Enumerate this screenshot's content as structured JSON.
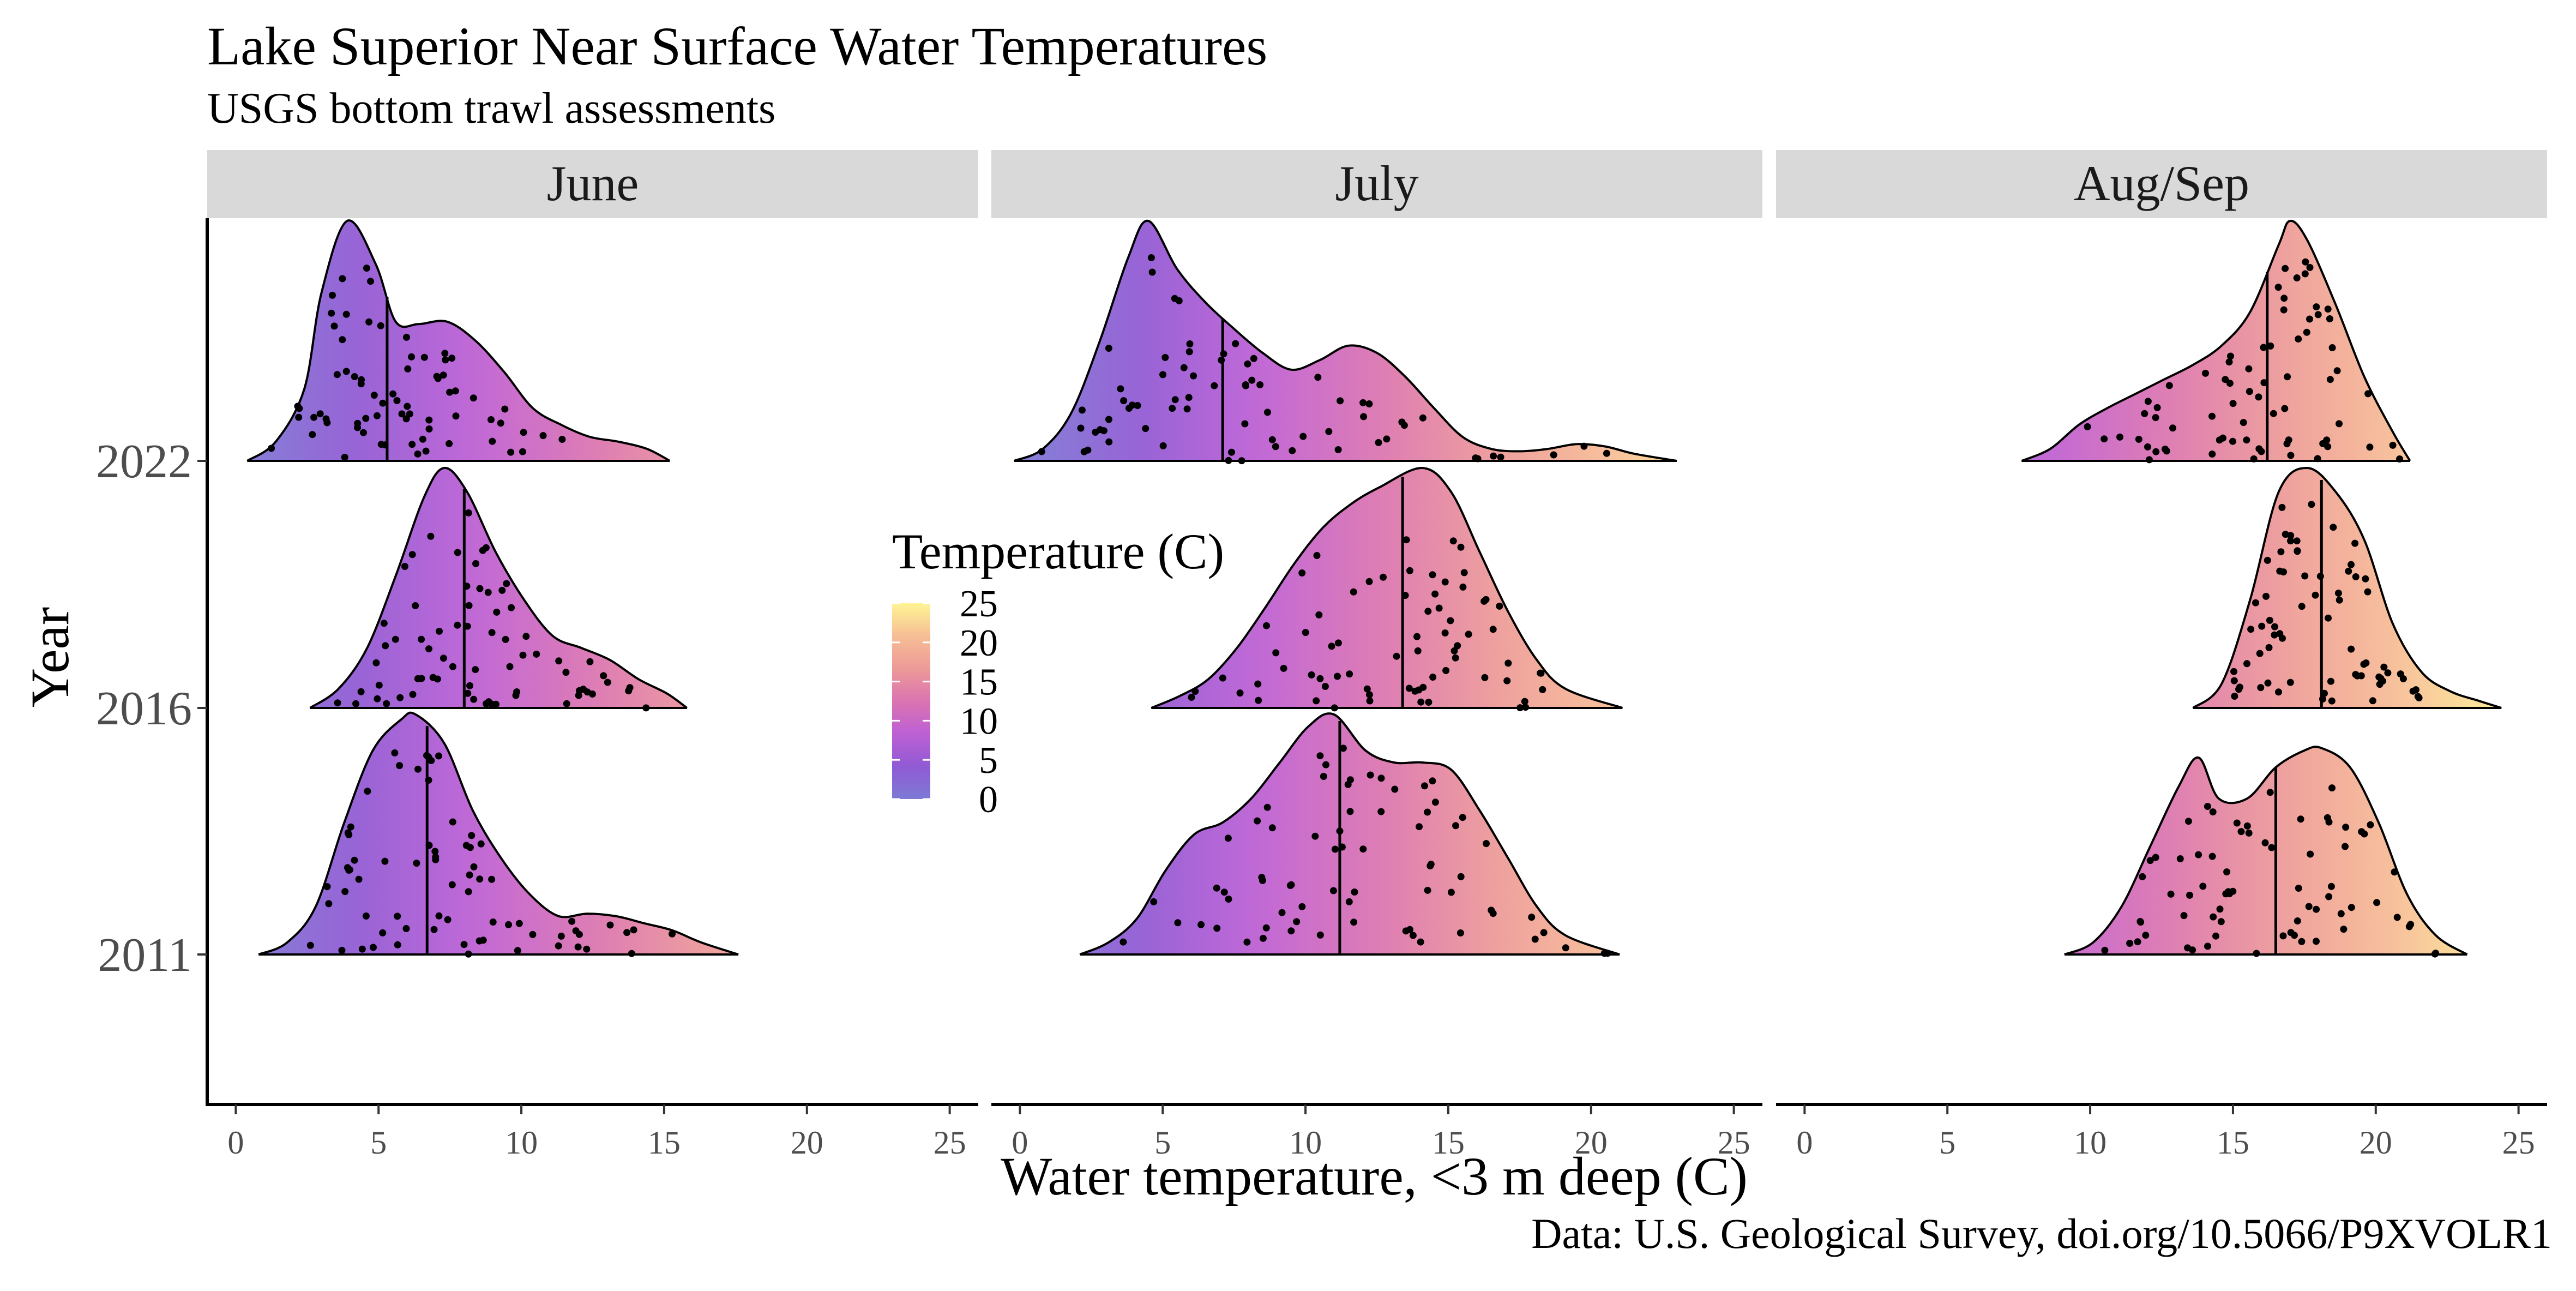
{
  "chart_data": {
    "type": "ridgeline",
    "title": "Lake Superior Near Surface Water Temperatures",
    "subtitle": "USGS bottom trawl assessments",
    "caption": "Data: U.S. Geological Survey, doi.org/10.5066/P9XVOLR1",
    "xlabel": "Water temperature, <3 m deep (C)",
    "ylabel": "Year",
    "xlim": [
      -1,
      26
    ],
    "xticks": [
      0,
      5,
      10,
      15,
      20,
      25
    ],
    "xtick_labels": [
      "0",
      "5",
      "10",
      "15",
      "20",
      "25"
    ],
    "years": [
      "2011",
      "2016",
      "2022"
    ],
    "legend": {
      "title": "Temperature (C)",
      "placement": "inside-center",
      "ticks": [
        0,
        5,
        10,
        15,
        20,
        25
      ],
      "tick_labels": [
        "0",
        "5",
        "10",
        "15",
        "20",
        "25"
      ],
      "range": [
        0,
        25
      ],
      "colors": [
        "#6e6bd0",
        "#8448cf",
        "#b64ed0",
        "#d765a8",
        "#eb8f8c",
        "#f6b78a",
        "#fef288"
      ]
    },
    "grid": false,
    "panels": [
      {
        "name": "June",
        "ridges": [
          {
            "year": "2011",
            "median": 6.7,
            "density": [
              [
                0.8,
                0
              ],
              [
                1.8,
                0.05
              ],
              [
                2.8,
                0.2
              ],
              [
                3.8,
                0.55
              ],
              [
                4.8,
                0.85
              ],
              [
                5.8,
                0.98
              ],
              [
                6.3,
                1
              ],
              [
                7.3,
                0.88
              ],
              [
                8.3,
                0.6
              ],
              [
                9.3,
                0.4
              ],
              [
                10.3,
                0.25
              ],
              [
                11.3,
                0.16
              ],
              [
                12.3,
                0.17
              ],
              [
                13.3,
                0.16
              ],
              [
                14.3,
                0.13
              ],
              [
                15.3,
                0.1
              ],
              [
                16.3,
                0.05
              ],
              [
                17.6,
                0
              ]
            ]
          },
          {
            "year": "2016",
            "median": 8.0,
            "density": [
              [
                2.6,
                0
              ],
              [
                3.6,
                0.08
              ],
              [
                4.6,
                0.25
              ],
              [
                5.6,
                0.55
              ],
              [
                6.6,
                0.88
              ],
              [
                7.3,
                1
              ],
              [
                8.1,
                0.9
              ],
              [
                9.1,
                0.65
              ],
              [
                10.1,
                0.45
              ],
              [
                11.1,
                0.3
              ],
              [
                12.1,
                0.25
              ],
              [
                13.1,
                0.2
              ],
              [
                14.1,
                0.12
              ],
              [
                15.1,
                0.06
              ],
              [
                15.8,
                0
              ]
            ]
          },
          {
            "year": "2022",
            "median": 5.3,
            "density": [
              [
                0.4,
                0
              ],
              [
                1.4,
                0.08
              ],
              [
                2.4,
                0.3
              ],
              [
                3.0,
                0.7
              ],
              [
                3.9,
                1
              ],
              [
                4.9,
                0.82
              ],
              [
                5.6,
                0.58
              ],
              [
                6.4,
                0.57
              ],
              [
                7.4,
                0.58
              ],
              [
                8.4,
                0.5
              ],
              [
                9.4,
                0.37
              ],
              [
                10.4,
                0.22
              ],
              [
                11.4,
                0.15
              ],
              [
                12.4,
                0.1
              ],
              [
                13.4,
                0.08
              ],
              [
                14.4,
                0.05
              ],
              [
                15.2,
                0
              ]
            ]
          }
        ]
      },
      {
        "name": "July",
        "ridges": [
          {
            "year": "2011",
            "median": 11.2,
            "density": [
              [
                2.1,
                0
              ],
              [
                3.1,
                0.05
              ],
              [
                4.1,
                0.15
              ],
              [
                5.1,
                0.35
              ],
              [
                6.1,
                0.5
              ],
              [
                7.1,
                0.55
              ],
              [
                8.1,
                0.65
              ],
              [
                9.1,
                0.8
              ],
              [
                10.1,
                0.95
              ],
              [
                11.0,
                1
              ],
              [
                12.1,
                0.85
              ],
              [
                13.1,
                0.8
              ],
              [
                14.1,
                0.8
              ],
              [
                15.1,
                0.77
              ],
              [
                16.1,
                0.6
              ],
              [
                17.1,
                0.4
              ],
              [
                18.1,
                0.2
              ],
              [
                19.1,
                0.08
              ],
              [
                21.0,
                0
              ]
            ]
          },
          {
            "year": "2016",
            "median": 13.4,
            "density": [
              [
                4.6,
                0
              ],
              [
                5.6,
                0.05
              ],
              [
                6.6,
                0.12
              ],
              [
                7.6,
                0.25
              ],
              [
                8.6,
                0.42
              ],
              [
                9.6,
                0.6
              ],
              [
                10.6,
                0.75
              ],
              [
                11.6,
                0.85
              ],
              [
                12.6,
                0.92
              ],
              [
                14.1,
                1
              ],
              [
                15.1,
                0.9
              ],
              [
                16.1,
                0.65
              ],
              [
                17.1,
                0.4
              ],
              [
                18.1,
                0.2
              ],
              [
                19.1,
                0.08
              ],
              [
                21.1,
                0
              ]
            ]
          },
          {
            "year": "2022",
            "median": 7.1,
            "density": [
              [
                -0.2,
                0
              ],
              [
                0.8,
                0.05
              ],
              [
                1.8,
                0.2
              ],
              [
                2.8,
                0.5
              ],
              [
                3.8,
                0.85
              ],
              [
                4.5,
                1
              ],
              [
                5.5,
                0.8
              ],
              [
                6.5,
                0.66
              ],
              [
                7.5,
                0.55
              ],
              [
                8.5,
                0.45
              ],
              [
                9.5,
                0.38
              ],
              [
                10.5,
                0.42
              ],
              [
                11.5,
                0.48
              ],
              [
                12.5,
                0.45
              ],
              [
                13.5,
                0.35
              ],
              [
                14.5,
                0.22
              ],
              [
                15.5,
                0.1
              ],
              [
                16.5,
                0.05
              ],
              [
                17.5,
                0.04
              ],
              [
                18.5,
                0.05
              ],
              [
                19.5,
                0.07
              ],
              [
                20.5,
                0.06
              ],
              [
                21.5,
                0.03
              ],
              [
                23.0,
                0
              ]
            ]
          }
        ]
      },
      {
        "name": "Aug/Sep",
        "ridges": [
          {
            "year": "2011",
            "median": 16.5,
            "density": [
              [
                9.1,
                0
              ],
              [
                10.1,
                0.05
              ],
              [
                11.1,
                0.2
              ],
              [
                12.1,
                0.45
              ],
              [
                13.1,
                0.7
              ],
              [
                13.8,
                0.82
              ],
              [
                14.5,
                0.65
              ],
              [
                15.5,
                0.65
              ],
              [
                16.5,
                0.78
              ],
              [
                17.5,
                0.85
              ],
              [
                18.1,
                0.86
              ],
              [
                19.1,
                0.78
              ],
              [
                20.1,
                0.55
              ],
              [
                21.1,
                0.25
              ],
              [
                22.1,
                0.08
              ],
              [
                23.2,
                0
              ]
            ]
          },
          {
            "year": "2016",
            "median": 18.1,
            "density": [
              [
                13.6,
                0
              ],
              [
                14.6,
                0.1
              ],
              [
                15.6,
                0.45
              ],
              [
                16.6,
                0.9
              ],
              [
                17.6,
                1
              ],
              [
                18.6,
                0.9
              ],
              [
                19.6,
                0.7
              ],
              [
                20.6,
                0.35
              ],
              [
                21.6,
                0.15
              ],
              [
                22.6,
                0.07
              ],
              [
                23.6,
                0.03
              ],
              [
                24.4,
                0
              ]
            ]
          },
          {
            "year": "2022",
            "median": 16.2,
            "density": [
              [
                7.6,
                0
              ],
              [
                8.6,
                0.05
              ],
              [
                9.6,
                0.15
              ],
              [
                10.6,
                0.22
              ],
              [
                11.6,
                0.28
              ],
              [
                12.6,
                0.34
              ],
              [
                13.6,
                0.4
              ],
              [
                14.6,
                0.48
              ],
              [
                15.6,
                0.62
              ],
              [
                16.6,
                0.9
              ],
              [
                17.0,
                1
              ],
              [
                17.6,
                0.92
              ],
              [
                18.6,
                0.65
              ],
              [
                19.6,
                0.35
              ],
              [
                20.6,
                0.12
              ],
              [
                21.2,
                0
              ]
            ]
          }
        ]
      }
    ]
  }
}
